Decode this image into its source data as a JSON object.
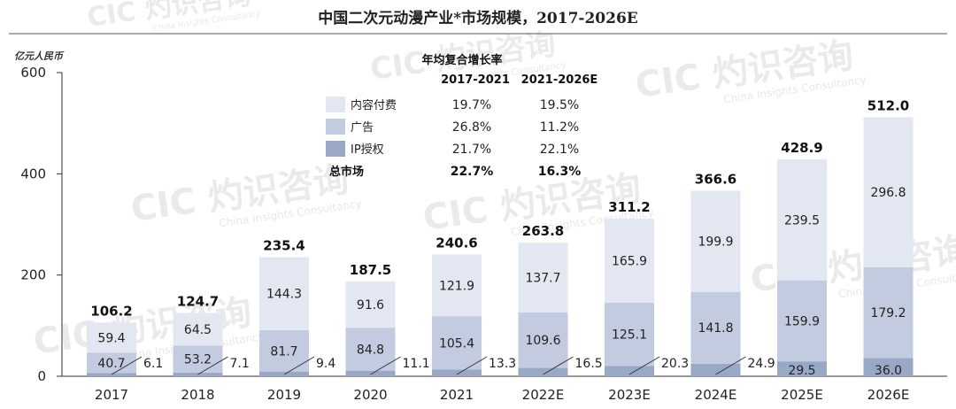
{
  "chart_data": {
    "type": "bar",
    "stacked": true,
    "title": "中国二次元动漫产业*市场规模，2017-2026E",
    "ylabel": "亿元人民币",
    "ylim": [
      0,
      600
    ],
    "yticks": [
      0,
      200,
      400,
      600
    ],
    "categories": [
      "2017",
      "2018",
      "2019",
      "2020",
      "2021",
      "2022E",
      "2023E",
      "2024E",
      "2025E",
      "2026E"
    ],
    "series": [
      {
        "name": "IP授权",
        "color": "#9aa8c8",
        "values": [
          6.1,
          7.1,
          9.4,
          11.1,
          13.3,
          16.5,
          20.3,
          24.9,
          29.5,
          36.0
        ]
      },
      {
        "name": "广告",
        "color": "#c3cbe0",
        "values": [
          40.7,
          53.2,
          81.7,
          84.8,
          105.4,
          109.6,
          125.1,
          141.8,
          159.9,
          179.2
        ]
      },
      {
        "name": "内容付费",
        "color": "#e3e7f1",
        "values": [
          59.4,
          64.5,
          144.3,
          91.6,
          121.9,
          137.7,
          165.9,
          199.9,
          239.5,
          296.8
        ]
      }
    ],
    "totals": [
      106.2,
      124.7,
      235.4,
      187.5,
      240.6,
      263.8,
      311.2,
      366.6,
      428.9,
      512.0
    ],
    "grid": false,
    "legend_position": "top-center"
  },
  "cagr_table": {
    "heading": "年均复合增长率",
    "col1": "2017-2021",
    "col2": "2021-2026E",
    "rows": [
      {
        "name": "内容付费",
        "swatch": "#e3e7f1",
        "v1": "19.7%",
        "v2": "19.5%",
        "bold": false
      },
      {
        "name": "广告",
        "swatch": "#c3cbe0",
        "v1": "26.8%",
        "v2": "11.2%",
        "bold": false
      },
      {
        "name": "IP授权",
        "swatch": "#9aa8c8",
        "v1": "21.7%",
        "v2": "22.1%",
        "bold": false
      },
      {
        "name": "总市场",
        "swatch": "",
        "v1": "22.7%",
        "v2": "16.3%",
        "bold": true
      }
    ]
  },
  "watermark": {
    "brand": "CIC",
    "cn": "灼识咨询",
    "en": "China Insights Consultancy"
  }
}
